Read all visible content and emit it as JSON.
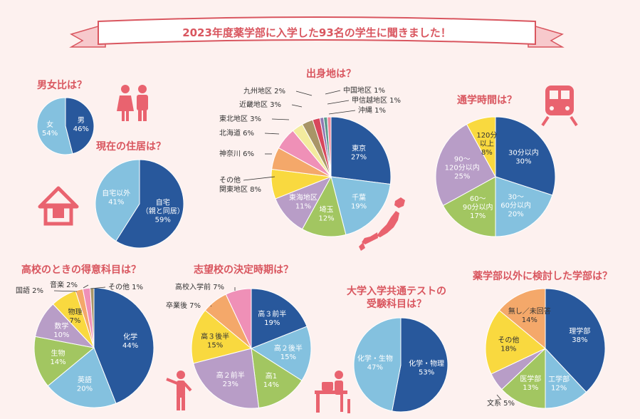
{
  "banner": "2023年度薬学部に入学した93名の学生に聞きました！",
  "chart_data": [
    {
      "id": "gender",
      "type": "pie",
      "title": "男女比は？",
      "slices": [
        {
          "label": "男",
          "value": 46,
          "pct": "46%",
          "color": "#28589c"
        },
        {
          "label": "女",
          "value": 54,
          "pct": "54%",
          "color": "#84c1df"
        }
      ]
    },
    {
      "id": "housing",
      "type": "pie",
      "title": "現在の住居は？",
      "slices": [
        {
          "label": "自宅",
          "sub": "（親と同居）",
          "value": 59,
          "pct": "59%",
          "color": "#28589c"
        },
        {
          "label": "自宅以外",
          "value": 41,
          "pct": "41%",
          "color": "#84c1df"
        }
      ]
    },
    {
      "id": "origin",
      "type": "pie",
      "title": "出身地は？",
      "slices": [
        {
          "label": "東京",
          "value": 27,
          "pct": "27%",
          "color": "#28589c"
        },
        {
          "label": "千葉",
          "value": 19,
          "pct": "19%",
          "color": "#84c1df"
        },
        {
          "label": "埼玉",
          "value": 12,
          "pct": "12%",
          "color": "#a2c661"
        },
        {
          "label": "東海地区",
          "value": 11,
          "pct": "11%",
          "color": "#b89dc7"
        },
        {
          "label": "その他",
          "label2": "関東地区",
          "value": 8,
          "pct": "8%",
          "color": "#f9d93f"
        },
        {
          "label": "神奈川",
          "value": 6,
          "pct": "6%",
          "color": "#f4a86a"
        },
        {
          "label": "北海道",
          "value": 6,
          "pct": "6%",
          "color": "#ef90b7"
        },
        {
          "label": "東北地区",
          "value": 3,
          "pct": "3%",
          "color": "#f3eb9e"
        },
        {
          "label": "近畿地区",
          "value": 3,
          "pct": "3%",
          "color": "#a89567"
        },
        {
          "label": "九州地区",
          "value": 2,
          "pct": "2%",
          "color": "#d8475c"
        },
        {
          "label": "中国地区",
          "value": 1,
          "pct": "1%",
          "color": "#8f77b2"
        },
        {
          "label": "甲信越地区",
          "value": 1,
          "pct": "1%",
          "color": "#5e9a8c"
        },
        {
          "label": "沖縄",
          "value": 1,
          "pct": "1%",
          "color": "#f08a9d"
        }
      ]
    },
    {
      "id": "commute",
      "type": "pie",
      "title": "通学時間は？",
      "slices": [
        {
          "label": "30分以内",
          "value": 30,
          "pct": "30%",
          "color": "#28589c"
        },
        {
          "label": "30〜",
          "label2": "60分以内",
          "value": 20,
          "pct": "20%",
          "color": "#84c1df"
        },
        {
          "label": "60〜",
          "label2": "90分以内",
          "value": 17,
          "pct": "17%",
          "color": "#a2c661"
        },
        {
          "label": "90〜",
          "label2": "120分以内",
          "value": 25,
          "pct": "25%",
          "color": "#b89dc7"
        },
        {
          "label": "120分",
          "label2": "以上",
          "value": 8,
          "pct": "8%",
          "color": "#f9d93f"
        }
      ]
    },
    {
      "id": "subject",
      "type": "pie",
      "title": "高校のときの得意科目は？",
      "slices": [
        {
          "label": "化学",
          "value": 44,
          "pct": "44%",
          "color": "#28589c"
        },
        {
          "label": "英語",
          "value": 20,
          "pct": "20%",
          "color": "#84c1df"
        },
        {
          "label": "生物",
          "value": 14,
          "pct": "14%",
          "color": "#a2c661"
        },
        {
          "label": "数学",
          "value": 10,
          "pct": "10%",
          "color": "#b89dc7"
        },
        {
          "label": "物理",
          "value": 7,
          "pct": "7%",
          "color": "#f9d93f"
        },
        {
          "label": "国語",
          "value": 2,
          "pct": "2%",
          "color": "#f4a86a"
        },
        {
          "label": "音楽",
          "value": 2,
          "pct": "2%",
          "color": "#ef90b7"
        },
        {
          "label": "その他",
          "value": 1,
          "pct": "1%",
          "color": "#a89567"
        }
      ]
    },
    {
      "id": "decision",
      "type": "pie",
      "title": "志望校の決定時期は？",
      "slices": [
        {
          "label": "高３前半",
          "value": 19,
          "pct": "19%",
          "color": "#28589c"
        },
        {
          "label": "高２後半",
          "value": 15,
          "pct": "15%",
          "color": "#84c1df"
        },
        {
          "label": "高1",
          "value": 14,
          "pct": "14%",
          "color": "#a2c661"
        },
        {
          "label": "高２前半",
          "value": 23,
          "pct": "23%",
          "color": "#b89dc7"
        },
        {
          "label": "高３後半",
          "value": 15,
          "pct": "15%",
          "color": "#f9d93f"
        },
        {
          "label": "卒業後",
          "value": 7,
          "pct": "7%",
          "color": "#f4a86a"
        },
        {
          "label": "高校入学前",
          "value": 7,
          "pct": "7%",
          "color": "#ef90b7"
        }
      ]
    },
    {
      "id": "exam",
      "type": "pie",
      "title": "大学入学共通テストの",
      "title2": "受験科目は？",
      "slices": [
        {
          "label": "化学・物理",
          "value": 53,
          "pct": "53%",
          "color": "#28589c"
        },
        {
          "label": "化学・生物",
          "value": 47,
          "pct": "47%",
          "color": "#84c1df"
        }
      ]
    },
    {
      "id": "faculty",
      "type": "pie",
      "title": "薬学部以外に検討した学部は？",
      "slices": [
        {
          "label": "理学部",
          "value": 38,
          "pct": "38%",
          "color": "#28589c"
        },
        {
          "label": "工学部",
          "value": 12,
          "pct": "12%",
          "color": "#84c1df"
        },
        {
          "label": "医学部",
          "value": 13,
          "pct": "13%",
          "color": "#a2c661"
        },
        {
          "label": "文系",
          "value": 5,
          "pct": "5%",
          "color": "#b89dc7"
        },
        {
          "label": "その他",
          "value": 18,
          "pct": "18%",
          "color": "#f9d93f"
        },
        {
          "label": "無し／未回答",
          "value": 14,
          "pct": "14%",
          "color": "#f4a86a"
        }
      ]
    }
  ]
}
